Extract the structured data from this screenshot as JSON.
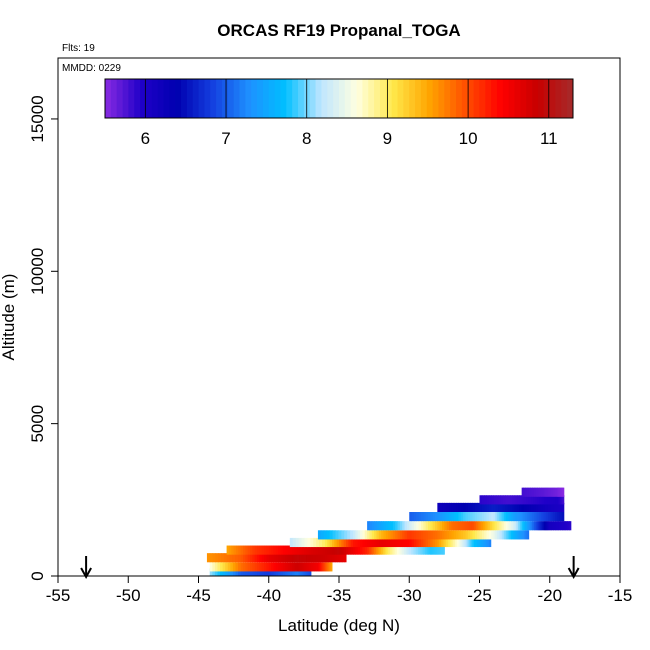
{
  "chart_data": {
    "type": "heatmap",
    "title": "ORCAS RF19 Propanal_TOGA",
    "flights_label": "Flts: 19",
    "date_label": "MMDD: 0229",
    "xlabel": "Latitude (deg N)",
    "ylabel": "Altitude (m)",
    "xlim": [
      -55,
      -15
    ],
    "ylim": [
      0,
      17000
    ],
    "x_ticks": [
      -55,
      -50,
      -45,
      -40,
      -35,
      -30,
      -25,
      -20,
      -15
    ],
    "x_tick_labels": [
      "-55",
      "-50",
      "-45",
      "-40",
      "-35",
      "-30",
      "-25",
      "-20",
      "-15"
    ],
    "y_ticks": [
      0,
      5000,
      10000,
      15000
    ],
    "y_tick_labels": [
      "0",
      "5000",
      "10000",
      "15000"
    ],
    "colorbar": {
      "range": [
        5.5,
        11.3
      ],
      "ticks": [
        6,
        7,
        8,
        9,
        10,
        11
      ],
      "tick_labels": [
        "6",
        "7",
        "8",
        "9",
        "10",
        "11"
      ],
      "colors": [
        "#8a2be2",
        "#2000c8",
        "#0000b0",
        "#1440e0",
        "#1e90ff",
        "#00bfff",
        "#bfe6ff",
        "#ffffe0",
        "#ffe84a",
        "#ffa500",
        "#ff5000",
        "#ff0000",
        "#c80000",
        "#a52a2a"
      ]
    },
    "arrows": [
      {
        "lat": -53.0,
        "name": "takeoff"
      },
      {
        "lat": -18.3,
        "name": "landing"
      }
    ],
    "series": [
      {
        "alt": 100,
        "points": [
          [
            -44.2,
            8.1
          ],
          [
            -42.0,
            7.0
          ],
          [
            -40.0,
            6.8
          ],
          [
            -38.0,
            7.2
          ],
          [
            -37.0,
            6.9
          ]
        ]
      },
      {
        "alt": 300,
        "points": [
          [
            -44.2,
            8.6
          ],
          [
            -42.0,
            9.8
          ],
          [
            -40.0,
            10.3
          ],
          [
            -38.0,
            10.8
          ],
          [
            -36.5,
            10.5
          ],
          [
            -35.5,
            9.5
          ]
        ]
      },
      {
        "alt": 600,
        "points": [
          [
            -44.4,
            9.6
          ],
          [
            -42.0,
            9.9
          ],
          [
            -40.0,
            10.6
          ],
          [
            -38.0,
            10.9
          ],
          [
            -36.0,
            10.8
          ],
          [
            -34.5,
            10.6
          ]
        ]
      },
      {
        "alt": 850,
        "points": [
          [
            -43.0,
            9.5
          ],
          [
            -41.0,
            10.1
          ],
          [
            -39.0,
            10.4
          ],
          [
            -37.0,
            10.7
          ],
          [
            -35.0,
            10.9
          ],
          [
            -33.0,
            10.2
          ],
          [
            -31.5,
            9.0
          ],
          [
            -30.0,
            8.2
          ],
          [
            -28.5,
            7.8
          ],
          [
            -27.5,
            7.9
          ]
        ]
      },
      {
        "alt": 1100,
        "points": [
          [
            -38.5,
            8.2
          ],
          [
            -36.0,
            9.0
          ],
          [
            -34.0,
            10.3
          ],
          [
            -32.0,
            10.6
          ],
          [
            -30.0,
            10.4
          ],
          [
            -28.0,
            9.6
          ],
          [
            -26.5,
            8.6
          ],
          [
            -25.5,
            7.8
          ],
          [
            -24.2,
            7.2
          ]
        ]
      },
      {
        "alt": 1350,
        "points": [
          [
            -36.5,
            7.5
          ],
          [
            -34.0,
            8.2
          ],
          [
            -32.0,
            9.4
          ],
          [
            -30.0,
            10.1
          ],
          [
            -28.0,
            9.8
          ],
          [
            -26.0,
            9.3
          ],
          [
            -24.0,
            8.5
          ],
          [
            -22.5,
            7.6
          ],
          [
            -21.5,
            7.1
          ]
        ]
      },
      {
        "alt": 1650,
        "points": [
          [
            -33.0,
            7.2
          ],
          [
            -31.0,
            7.8
          ],
          [
            -29.0,
            8.8
          ],
          [
            -27.0,
            9.8
          ],
          [
            -25.5,
            10.0
          ],
          [
            -24.0,
            9.1
          ],
          [
            -22.5,
            8.3
          ],
          [
            -21.0,
            6.9
          ],
          [
            -20.0,
            6.1
          ],
          [
            -18.5,
            5.9
          ]
        ]
      },
      {
        "alt": 1950,
        "points": [
          [
            -30.0,
            7.0
          ],
          [
            -28.0,
            7.3
          ],
          [
            -26.0,
            7.9
          ],
          [
            -24.0,
            8.2
          ],
          [
            -22.5,
            7.4
          ],
          [
            -21.0,
            7.0
          ],
          [
            -19.5,
            6.6
          ],
          [
            -19.0,
            6.5
          ]
        ]
      },
      {
        "alt": 2250,
        "points": [
          [
            -28.0,
            6.2
          ],
          [
            -26.0,
            6.4
          ],
          [
            -24.0,
            6.6
          ],
          [
            -22.0,
            6.4
          ],
          [
            -20.0,
            6.1
          ],
          [
            -19.0,
            6.0
          ]
        ]
      },
      {
        "alt": 2500,
        "points": [
          [
            -25.0,
            5.9
          ],
          [
            -23.0,
            5.8
          ],
          [
            -21.0,
            5.9
          ],
          [
            -19.5,
            6.0
          ],
          [
            -19.0,
            5.8
          ]
        ]
      },
      {
        "alt": 2750,
        "points": [
          [
            -22.0,
            5.8
          ],
          [
            -20.5,
            5.7
          ],
          [
            -19.5,
            5.6
          ],
          [
            -19.0,
            5.5
          ]
        ]
      }
    ]
  }
}
